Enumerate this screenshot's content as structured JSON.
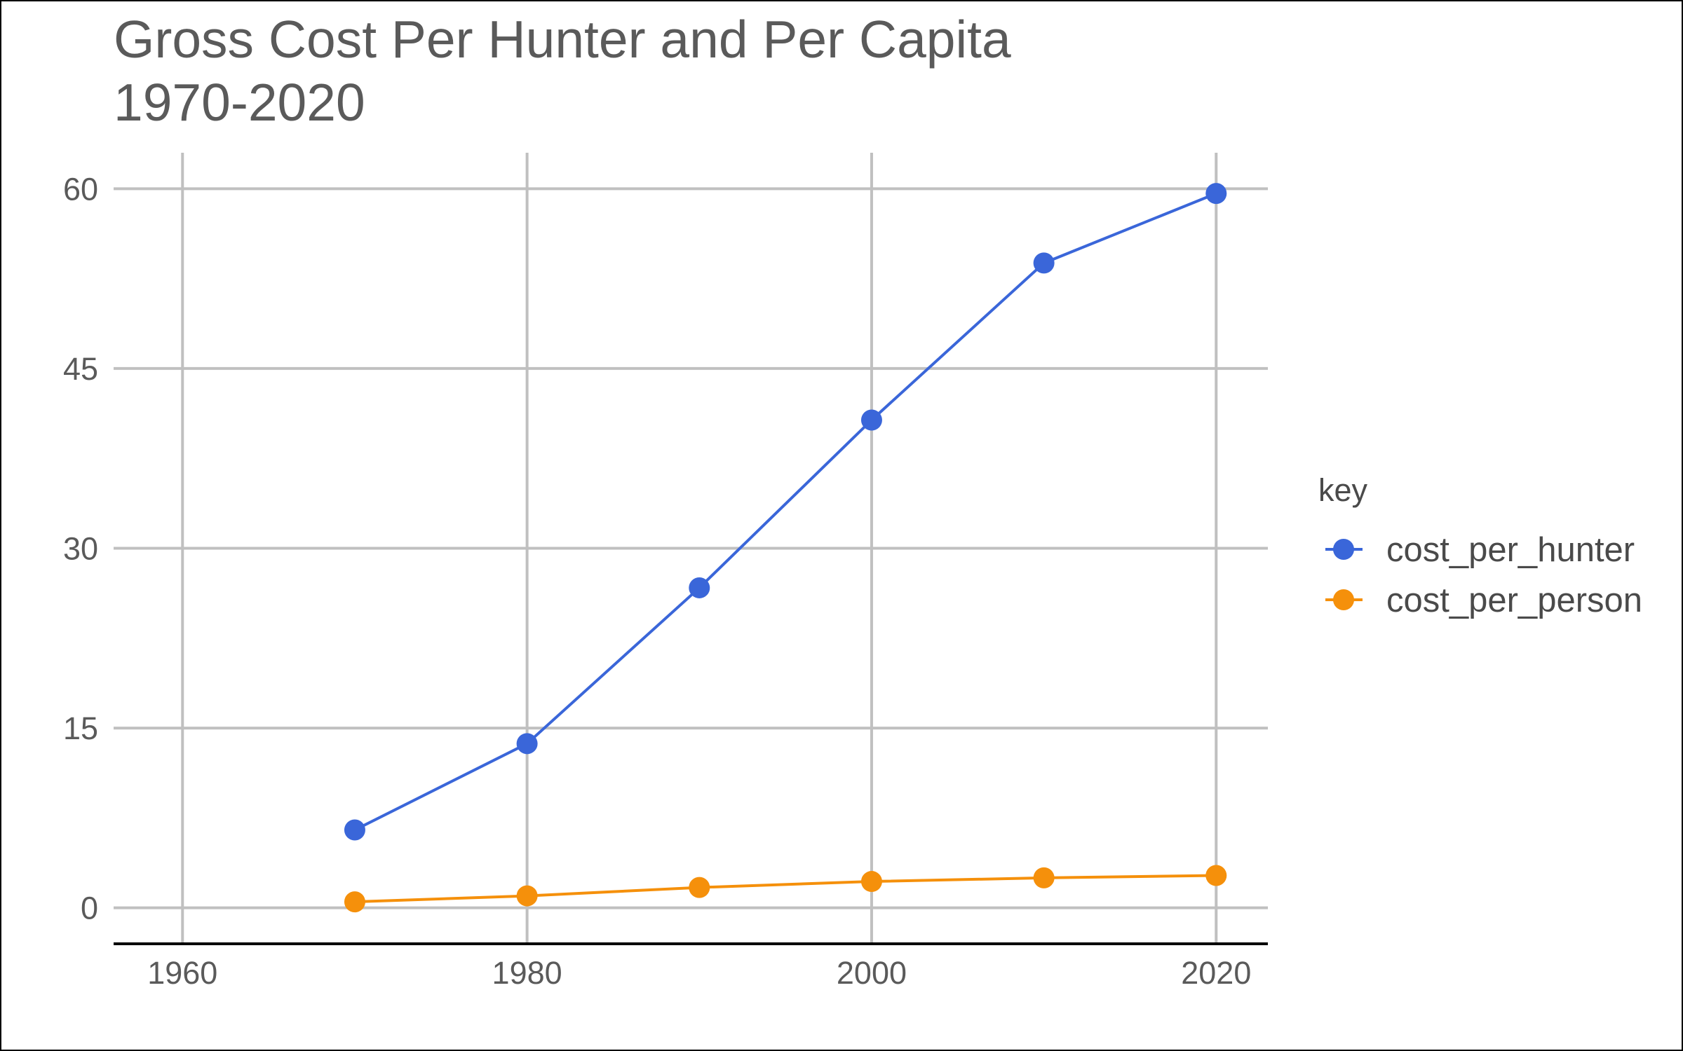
{
  "chart_data": {
    "type": "line",
    "title": "Gross Cost Per Hunter and Per Capita",
    "subtitle": "1970-2020",
    "xlabel": "",
    "ylabel": "",
    "xlim": [
      1956,
      2023
    ],
    "ylim": [
      -3,
      63
    ],
    "x_ticks": [
      "1960",
      "1980",
      "2000",
      "2020"
    ],
    "y_ticks": [
      "60",
      "45",
      "30",
      "15",
      "0"
    ],
    "x": [
      1970,
      1980,
      1990,
      2000,
      2010,
      2020
    ],
    "grid": true,
    "legend_title": "key",
    "legend_position": "right",
    "series": [
      {
        "name": "cost_per_hunter",
        "color": "#3a66d9",
        "values": [
          6.5,
          13.7,
          26.7,
          40.7,
          53.8,
          59.6
        ]
      },
      {
        "name": "cost_per_person",
        "color": "#f5900b",
        "values": [
          0.5,
          1.0,
          1.7,
          2.2,
          2.5,
          2.7
        ]
      }
    ]
  }
}
